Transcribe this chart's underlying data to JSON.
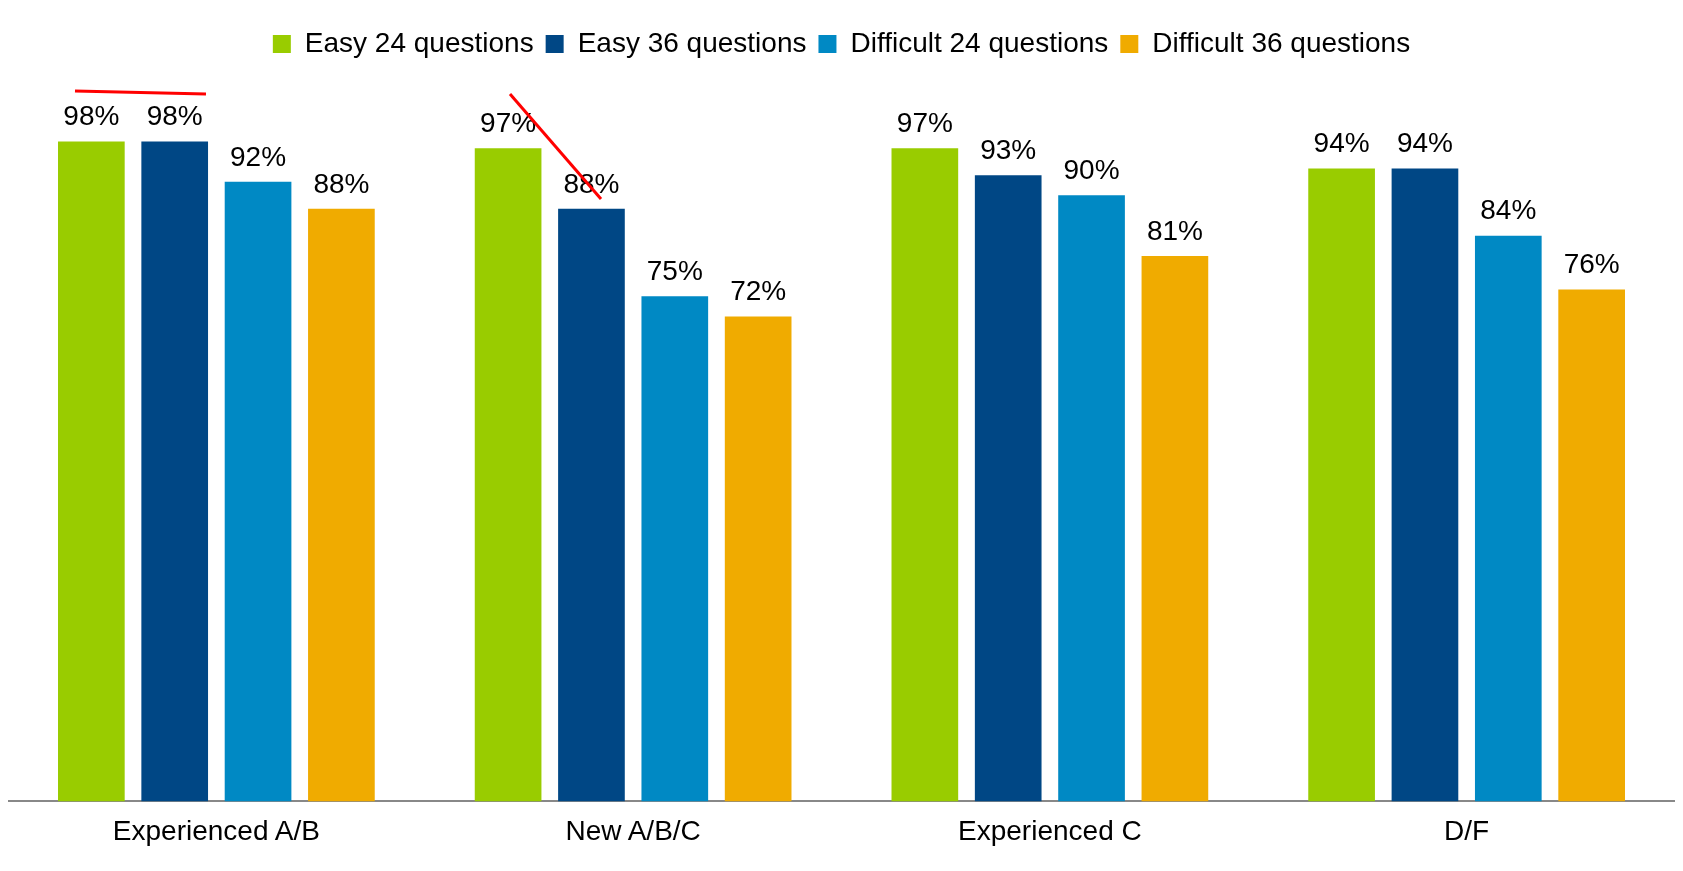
{
  "chart_data": {
    "type": "bar",
    "categories": [
      "Experienced A/B",
      "New A/B/C",
      "Experienced C",
      "D/F"
    ],
    "series": [
      {
        "name": "Easy 24 questions",
        "color": "#99cc00",
        "values": [
          98,
          97,
          97,
          94
        ],
        "value_labels": [
          "98%",
          "97%",
          "97%",
          "94%"
        ]
      },
      {
        "name": "Easy 36 questions",
        "color": "#004785",
        "values": [
          98,
          88,
          93,
          94
        ],
        "value_labels": [
          "98%",
          "88%",
          "93%",
          "94%"
        ]
      },
      {
        "name": "Difficult 24 questions",
        "color": "#0089c4",
        "values": [
          92,
          75,
          90,
          84
        ],
        "value_labels": [
          "92%",
          "75%",
          "90%",
          "84%"
        ]
      },
      {
        "name": "Difficult 36 questions",
        "color": "#f0ab00",
        "values": [
          88,
          72,
          81,
          76
        ],
        "value_labels": [
          "88%",
          "72%",
          "81%",
          "76%"
        ]
      }
    ],
    "tick_labels": "x",
    "grid": false,
    "legend": "top"
  }
}
